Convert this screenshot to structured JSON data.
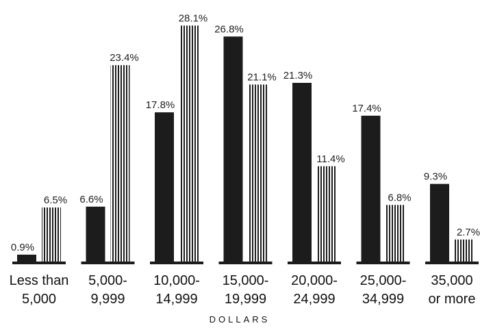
{
  "chart_data": {
    "type": "bar",
    "title": "",
    "xlabel": "DOLLARS",
    "ylabel": "",
    "ylim": [
      0,
      30
    ],
    "grid": false,
    "legend": "none",
    "categories": [
      [
        "Less than",
        "5,000"
      ],
      [
        "5,000-",
        "9,999"
      ],
      [
        "10,000-",
        "14,999"
      ],
      [
        "15,000-",
        "19,999"
      ],
      [
        "20,000-",
        "24,999"
      ],
      [
        "25,000-",
        "34,999"
      ],
      [
        "35,000",
        "or more"
      ]
    ],
    "series": [
      {
        "style": "solid",
        "color": "#1c1c1c",
        "values": [
          0.9,
          6.6,
          17.8,
          26.8,
          21.3,
          17.4,
          9.3
        ],
        "labels": [
          "0.9%",
          "6.6%",
          "17.8%",
          "26.8%",
          "21.3%",
          "17.4%",
          "9.3%"
        ]
      },
      {
        "style": "striped",
        "color": "#1c1c1c",
        "values": [
          6.5,
          23.4,
          28.1,
          21.1,
          11.4,
          6.8,
          2.7
        ],
        "labels": [
          "6.5%",
          "23.4%",
          "28.1%",
          "21.1%",
          "11.4%",
          "6.8%",
          "2.7%"
        ]
      }
    ]
  }
}
